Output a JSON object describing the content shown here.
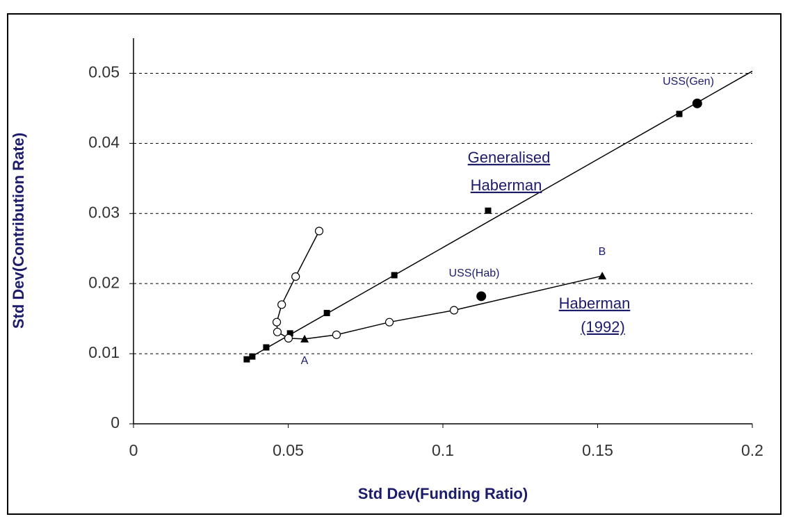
{
  "chart_data": {
    "type": "scatter",
    "x_label": "Std Dev(Funding Ratio)",
    "y_label": "Std Dev(Contribution Rate)",
    "xlim": [
      0,
      0.2
    ],
    "ylim": [
      0,
      0.055
    ],
    "xticks": [
      0,
      0.05,
      0.1,
      0.15,
      0.2
    ],
    "yticks": [
      0,
      0.01,
      0.02,
      0.03,
      0.04,
      0.05
    ],
    "grid": true,
    "series": [
      {
        "marker": "none",
        "line": true,
        "color": "#000000",
        "x": [
          0.0366,
          0.2
        ],
        "values": [
          0.0092,
          0.0503
        ]
      },
      {
        "marker": "none",
        "line": true,
        "color": "#000000",
        "x": [
          0.06,
          0.0524,
          0.0479,
          0.0463,
          0.0465,
          0.0501,
          0.0553,
          0.0656,
          0.0827,
          0.1036,
          0.1515
        ],
        "values": [
          0.0275,
          0.021,
          0.017,
          0.0145,
          0.0131,
          0.0122,
          0.0121,
          0.0127,
          0.0145,
          0.0162,
          0.0211
        ]
      },
      {
        "marker": "square",
        "line": false,
        "color": "#000000",
        "x": [
          0.0366,
          0.0384,
          0.0429,
          0.0506,
          0.0625,
          0.0843,
          0.1146,
          0.1764
        ],
        "values": [
          0.0092,
          0.0096,
          0.0109,
          0.0129,
          0.0158,
          0.0212,
          0.0304,
          0.0442
        ]
      },
      {
        "marker": "circle-open",
        "line": false,
        "color": "#000000",
        "x": [
          0.06,
          0.0524,
          0.0479,
          0.0463,
          0.0465,
          0.0501,
          0.0656,
          0.0827,
          0.1036
        ],
        "values": [
          0.0275,
          0.021,
          0.017,
          0.0145,
          0.0131,
          0.0122,
          0.0127,
          0.0145,
          0.0162
        ]
      },
      {
        "marker": "triangle",
        "line": false,
        "color": "#000000",
        "x": [
          0.0553,
          0.1515
        ],
        "values": [
          0.0121,
          0.0211
        ]
      },
      {
        "marker": "circle-filled",
        "line": false,
        "color": "#000000",
        "x": [
          0.1124,
          0.1822
        ],
        "values": [
          0.0182,
          0.0457
        ]
      }
    ],
    "annotations": [
      "USS(Gen)",
      "Generalised",
      "Haberman",
      "USS(Hab)",
      "B",
      "Haberman",
      "(1992)",
      "A"
    ]
  }
}
